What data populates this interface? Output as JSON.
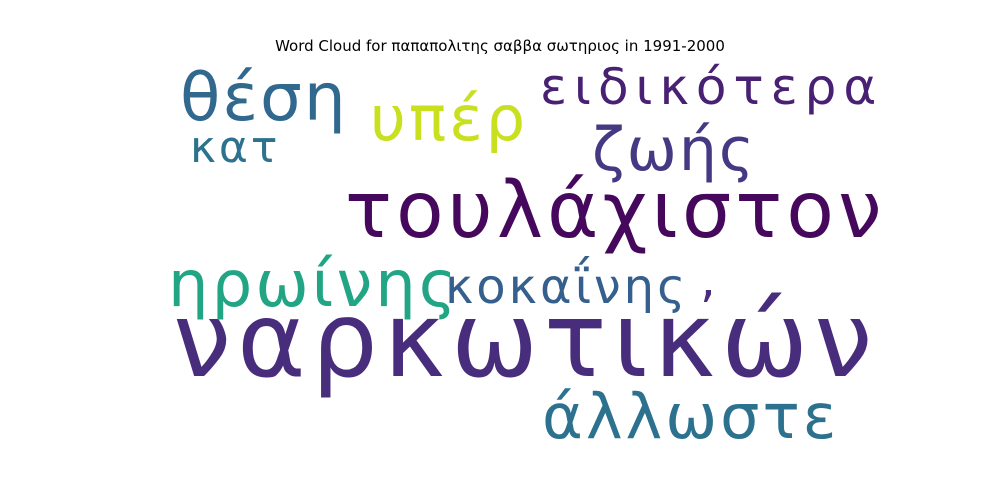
{
  "chart_data": {
    "type": "word_cloud",
    "title": "Word Cloud for παπαπολιτης σαββα σωτηριος in 1991-2000",
    "words": [
      {
        "text": "ναρκωτικών",
        "color": "#472d7b"
      },
      {
        "text": "τουλάχιστον",
        "color": "#46085c"
      },
      {
        "text": "ηρωίνης",
        "color": "#21a585"
      },
      {
        "text": "κοκαΐνης",
        "color": "#355f8d"
      },
      {
        "text": "άλλωστε",
        "color": "#2c728e"
      },
      {
        "text": "ζωής",
        "color": "#443983"
      },
      {
        "text": "ειδικότερα",
        "color": "#482173"
      },
      {
        "text": "θέση",
        "color": "#31688e"
      },
      {
        "text": "υπέρ",
        "color": "#c8e020"
      },
      {
        "text": "κατ",
        "color": "#2c728e"
      },
      {
        "text": ",",
        "color": "#472d7b"
      }
    ]
  }
}
